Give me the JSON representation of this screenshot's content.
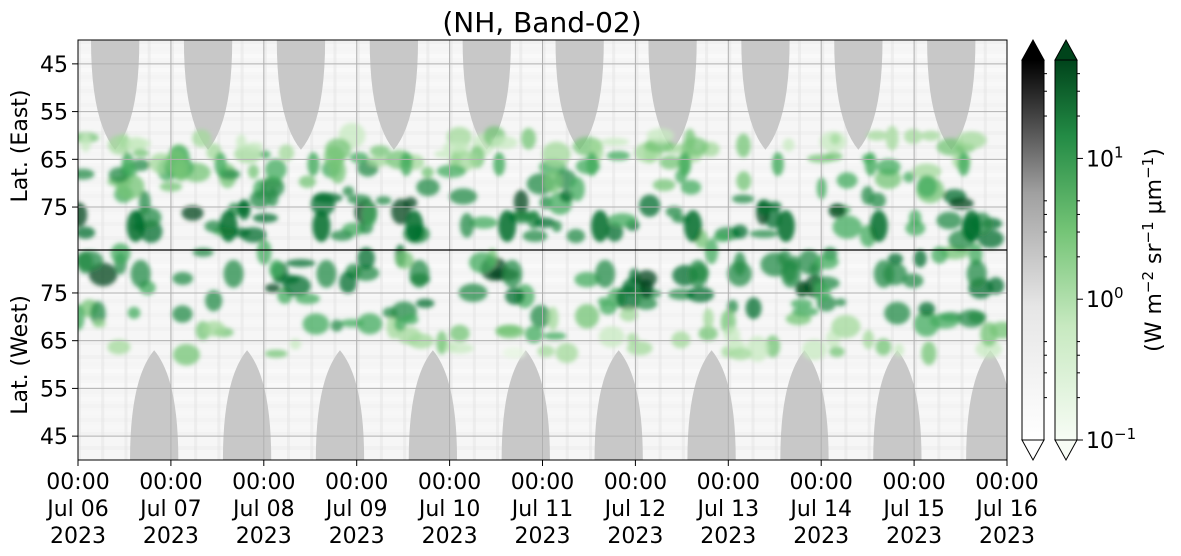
{
  "chart_data": {
    "type": "heatmap",
    "title": "(NH, Band-02)",
    "panels": [
      {
        "name": "east",
        "ylabel": "Lat. (East)",
        "yticks": [
          "45",
          "55",
          "65",
          "75"
        ],
        "yrange": [
          40,
          84
        ]
      },
      {
        "name": "west",
        "ylabel": "Lat. (West)",
        "yticks": [
          "75",
          "65",
          "55",
          "45"
        ],
        "yrange": [
          84,
          40
        ]
      }
    ],
    "x": {
      "ticks": [
        {
          "time": "00:00",
          "date": "Jul 06",
          "year": "2023"
        },
        {
          "time": "00:00",
          "date": "Jul 07",
          "year": "2023"
        },
        {
          "time": "00:00",
          "date": "Jul 08",
          "year": "2023"
        },
        {
          "time": "00:00",
          "date": "Jul 09",
          "year": "2023"
        },
        {
          "time": "00:00",
          "date": "Jul 10",
          "year": "2023"
        },
        {
          "time": "00:00",
          "date": "Jul 11",
          "year": "2023"
        },
        {
          "time": "00:00",
          "date": "Jul 12",
          "year": "2023"
        },
        {
          "time": "00:00",
          "date": "Jul 13",
          "year": "2023"
        },
        {
          "time": "00:00",
          "date": "Jul 14",
          "year": "2023"
        },
        {
          "time": "00:00",
          "date": "Jul 15",
          "year": "2023"
        },
        {
          "time": "00:00",
          "date": "Jul 16",
          "year": "2023"
        }
      ],
      "range": [
        "2023-07-06 00:00",
        "2023-07-16 00:00"
      ]
    },
    "grid": true,
    "colorbars": [
      {
        "name": "background",
        "cmap": "Greys",
        "scale": "log",
        "extend": "both"
      },
      {
        "name": "aurora",
        "cmap": "Greens",
        "scale": "log",
        "extend": "both",
        "ticks": [
          {
            "base": "10",
            "exp": "−1",
            "value": 0.1
          },
          {
            "base": "10",
            "exp": "0",
            "value": 1
          },
          {
            "base": "10",
            "exp": "1",
            "value": 10
          }
        ],
        "label": "(W m−2 sr−1 μm−1)"
      }
    ],
    "daylight_color": "#c8c8c8",
    "green_dark": "#00441b",
    "green_light": "#f7fcf5"
  }
}
